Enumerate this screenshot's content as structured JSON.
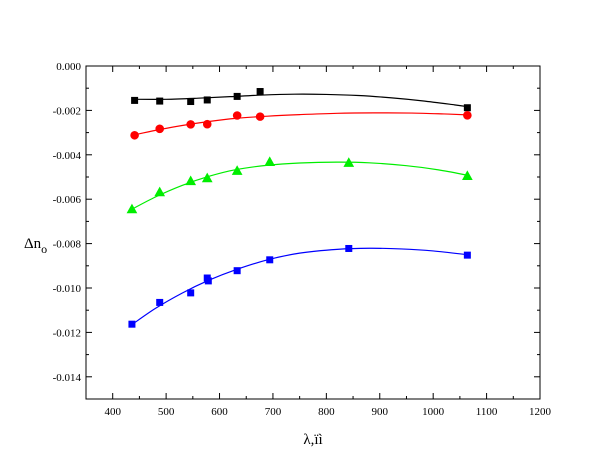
{
  "chart_data": {
    "type": "scatter",
    "xlabel": "λ,ïì",
    "ylabel": "Δn",
    "ylabel_subscript": "o",
    "xlim": [
      350,
      1200
    ],
    "ylim": [
      -0.015,
      0.0
    ],
    "xticks": [
      400,
      500,
      600,
      700,
      800,
      900,
      1000,
      1100,
      1200
    ],
    "yticks": [
      -0.014,
      -0.012,
      -0.01,
      -0.008,
      -0.006,
      -0.004,
      -0.002,
      0.0
    ],
    "xtick_labels": [
      "400",
      "500",
      "600",
      "700",
      "800",
      "900",
      "1000",
      "1100",
      "1200"
    ],
    "ytick_labels": [
      "-0.014",
      "-0.012",
      "-0.010",
      "-0.008",
      "-0.006",
      "-0.004",
      "-0.002",
      "0.000"
    ],
    "grid": false,
    "series": [
      {
        "color": "#000000",
        "marker": "square",
        "points": [
          [
            441,
            -0.00155
          ],
          [
            488,
            -0.00158
          ],
          [
            546,
            -0.0016
          ],
          [
            577,
            -0.00153
          ],
          [
            633,
            -0.00137
          ],
          [
            676,
            -0.00115
          ],
          [
            1064,
            -0.00188
          ]
        ],
        "curve": [
          [
            441,
            -0.0015
          ],
          [
            500,
            -0.0015
          ],
          [
            560,
            -0.00145
          ],
          [
            620,
            -0.00138
          ],
          [
            680,
            -0.00131
          ],
          [
            740,
            -0.00127
          ],
          [
            800,
            -0.00128
          ],
          [
            860,
            -0.00133
          ],
          [
            920,
            -0.00143
          ],
          [
            980,
            -0.00157
          ],
          [
            1040,
            -0.00175
          ],
          [
            1064,
            -0.00183
          ]
        ]
      },
      {
        "color": "#ff0000",
        "marker": "circle",
        "points": [
          [
            441,
            -0.00312
          ],
          [
            488,
            -0.00283
          ],
          [
            546,
            -0.00263
          ],
          [
            577,
            -0.00262
          ],
          [
            633,
            -0.00223
          ],
          [
            676,
            -0.00228
          ],
          [
            1064,
            -0.00222
          ]
        ],
        "curve": [
          [
            441,
            -0.0031
          ],
          [
            480,
            -0.0029
          ],
          [
            530,
            -0.00268
          ],
          [
            580,
            -0.0025
          ],
          [
            630,
            -0.00236
          ],
          [
            690,
            -0.00226
          ],
          [
            750,
            -0.00219
          ],
          [
            820,
            -0.00213
          ],
          [
            890,
            -0.00211
          ],
          [
            960,
            -0.00212
          ],
          [
            1020,
            -0.00216
          ],
          [
            1064,
            -0.0022
          ]
        ]
      },
      {
        "color": "#00ee00",
        "marker": "triangle",
        "points": [
          [
            436,
            -0.00645
          ],
          [
            488,
            -0.00568
          ],
          [
            546,
            -0.00518
          ],
          [
            577,
            -0.00505
          ],
          [
            633,
            -0.00472
          ],
          [
            694,
            -0.00432
          ],
          [
            842,
            -0.00436
          ],
          [
            1064,
            -0.00495
          ]
        ],
        "curve": [
          [
            436,
            -0.00645
          ],
          [
            480,
            -0.0059
          ],
          [
            530,
            -0.00538
          ],
          [
            580,
            -0.00497
          ],
          [
            630,
            -0.00467
          ],
          [
            690,
            -0.00447
          ],
          [
            750,
            -0.00437
          ],
          [
            820,
            -0.00433
          ],
          [
            880,
            -0.00436
          ],
          [
            950,
            -0.00449
          ],
          [
            1010,
            -0.00468
          ],
          [
            1064,
            -0.00492
          ]
        ]
      },
      {
        "color": "#0000ff",
        "marker": "square",
        "points": [
          [
            436,
            -0.01163
          ],
          [
            488,
            -0.01065
          ],
          [
            546,
            -0.01022
          ],
          [
            577,
            -0.00955
          ],
          [
            579,
            -0.00968
          ],
          [
            633,
            -0.00922
          ],
          [
            694,
            -0.00873
          ],
          [
            842,
            -0.00822
          ],
          [
            1064,
            -0.00852
          ]
        ],
        "curve": [
          [
            436,
            -0.01165
          ],
          [
            480,
            -0.01092
          ],
          [
            530,
            -0.01023
          ],
          [
            580,
            -0.00965
          ],
          [
            630,
            -0.00918
          ],
          [
            690,
            -0.00873
          ],
          [
            750,
            -0.00843
          ],
          [
            820,
            -0.00826
          ],
          [
            880,
            -0.00821
          ],
          [
            940,
            -0.00824
          ],
          [
            1000,
            -0.00833
          ],
          [
            1064,
            -0.0085
          ]
        ]
      }
    ]
  }
}
